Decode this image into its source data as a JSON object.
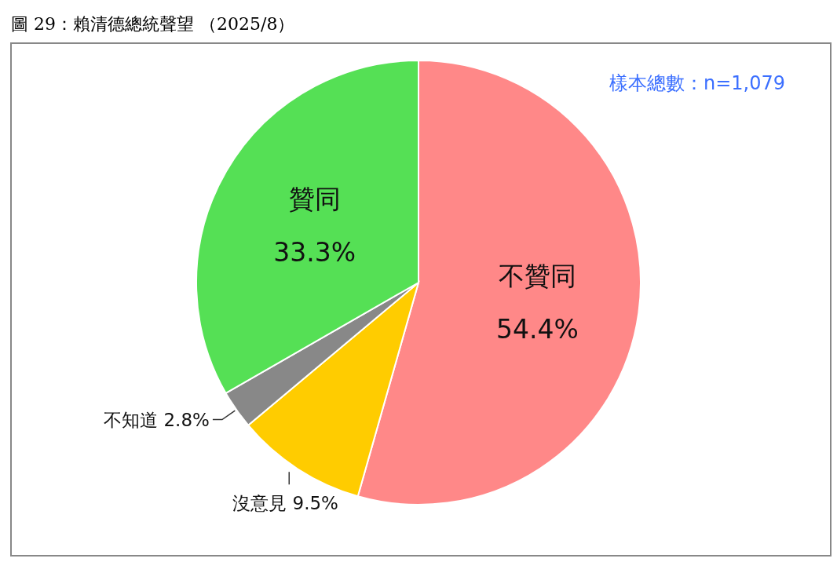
{
  "chart_data": {
    "type": "pie",
    "title": "圖 29：賴清德總統聲望 （2025/8）",
    "categories": [
      "不贊同",
      "沒意見",
      "不知道",
      "贊同"
    ],
    "values": [
      54.4,
      9.5,
      2.8,
      33.3
    ],
    "colors": [
      "#ff8888",
      "#ffcc00",
      "#888888",
      "#55e055"
    ],
    "value_labels": [
      "54.4%",
      "9.5%",
      "2.8%",
      "33.3%"
    ],
    "annotations": [
      "樣本總數：n=1,079"
    ],
    "legend": false
  }
}
